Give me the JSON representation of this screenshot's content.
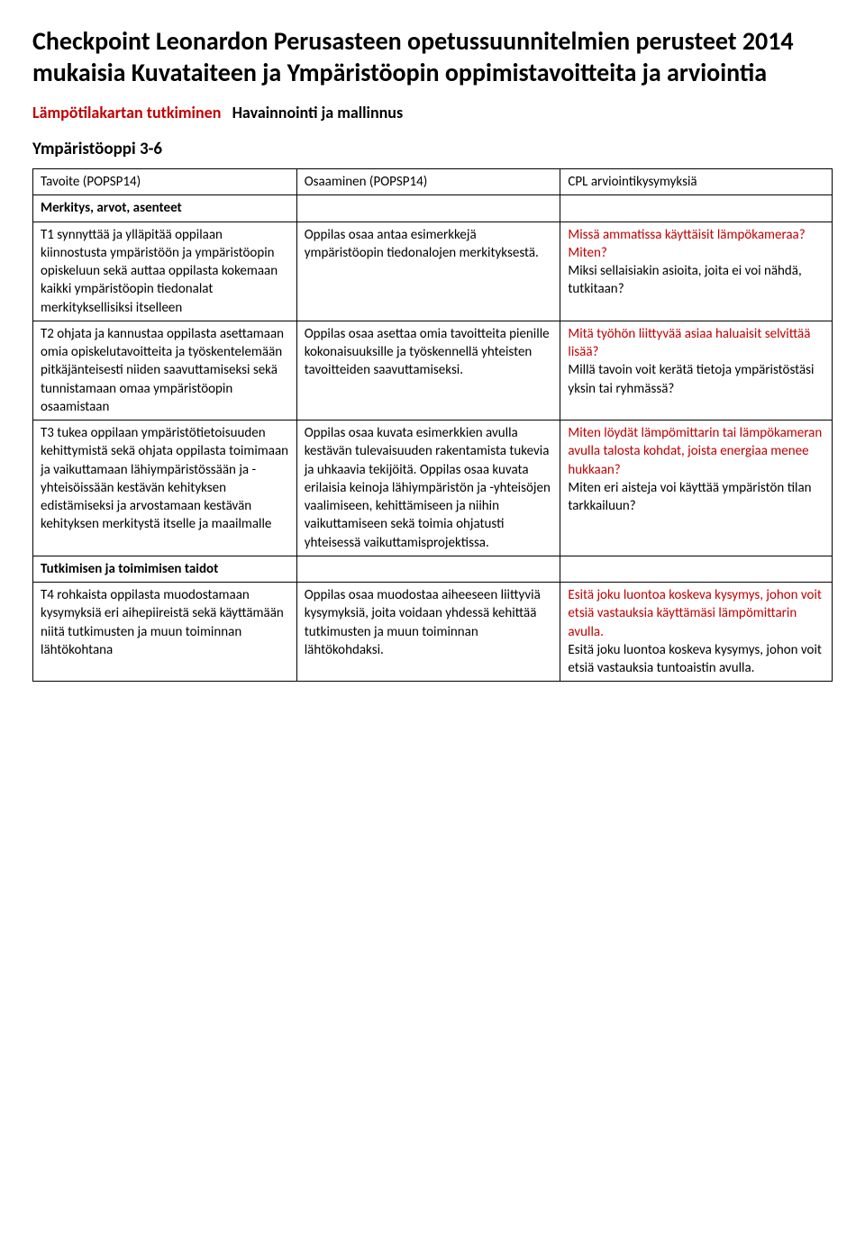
{
  "title": "Checkpoint Leonardon Perusasteen opetussuunnitelmien perusteet 2014 mukaisia Kuvataiteen ja Ympäristöopin oppimistavoitteita ja arviointia",
  "subtitle": {
    "red": "Lämpötilakartan tutkiminen",
    "black": "Havainnointi ja mallinnus"
  },
  "section_heading": "Ympäristöoppi 3-6",
  "table": {
    "header": {
      "c1": "Tavoite (POPSP14)",
      "c2": "Osaaminen (POPSP14)",
      "c3": "CPL arviointikysymyksiä"
    },
    "section1_label": "Merkitys, arvot, asenteet",
    "rows": [
      {
        "c1": "T1 synnyttää ja ylläpitää oppilaan kiinnostusta ympäristöön ja ympäristöopin opiskeluun sekä auttaa oppilasta kokemaan kaikki ympäristöopin tiedonalat merkityksellisiksi itselleen",
        "c2": "Oppilas osaa antaa esimerkkejä ympäristöopin tiedonalojen merkityksestä.",
        "c3_red": "Missä ammatissa käyttäisit lämpökameraa? Miten?",
        "c3_black": "Miksi sellaisiakin asioita, joita ei voi nähdä, tutkitaan?"
      },
      {
        "c1": "T2 ohjata ja kannustaa oppilasta asettamaan omia opiskelutavoitteita ja työskentelemään pitkäjänteisesti niiden saavuttamiseksi sekä tunnistamaan omaa ympäristöopin osaamistaan",
        "c2": "Oppilas osaa asettaa omia tavoitteita pienille kokonaisuuksille ja työskennellä yhteisten tavoitteiden saavuttamiseksi.",
        "c3_red": "Mitä työhön liittyvää asiaa haluaisit selvittää lisää?",
        "c3_black": "Millä tavoin voit kerätä tietoja ympäristöstäsi yksin tai ryhmässä?"
      },
      {
        "c1": "T3 tukea oppilaan ympäristötietoisuuden kehittymistä sekä ohjata oppilasta toimimaan ja vaikuttamaan lähiympäristössään ja -yhteisöissään kestävän kehityksen edistämiseksi ja arvostamaan kestävän kehityksen merkitystä itselle ja maailmalle",
        "c2": "Oppilas osaa kuvata esimerkkien avulla kestävän tulevaisuuden rakentamista tukevia ja uhkaavia tekijöitä. Oppilas osaa kuvata erilaisia keinoja lähiympäristön ja -yhteisöjen vaalimiseen, kehittämiseen ja niihin vaikuttamiseen sekä toimia ohjatusti yhteisessä vaikuttamisprojektissa.",
        "c3_red": "Miten löydät lämpömittarin tai lämpökameran avulla talosta kohdat, joista energiaa menee hukkaan?",
        "c3_black": "Miten eri aisteja voi käyttää ympäristön tilan tarkkailuun?"
      }
    ],
    "section2_label": "Tutkimisen ja toimimisen taidot",
    "rows2": [
      {
        "c1": "T4 rohkaista oppilasta muodostamaan kysymyksiä eri aihepiireistä sekä käyttämään niitä tutkimusten ja muun toiminnan lähtökohtana",
        "c2": "Oppilas osaa muodostaa aiheeseen liittyviä kysymyksiä, joita voidaan yhdessä kehittää tutkimusten ja muun toiminnan lähtökohdaksi.",
        "c3_red": "Esitä joku luontoa koskeva kysymys, johon voit etsiä vastauksia käyttämäsi lämpömittarin avulla.",
        "c3_black": "Esitä joku luontoa koskeva kysymys, johon voit etsiä vastauksia tuntoaistin avulla."
      }
    ]
  }
}
